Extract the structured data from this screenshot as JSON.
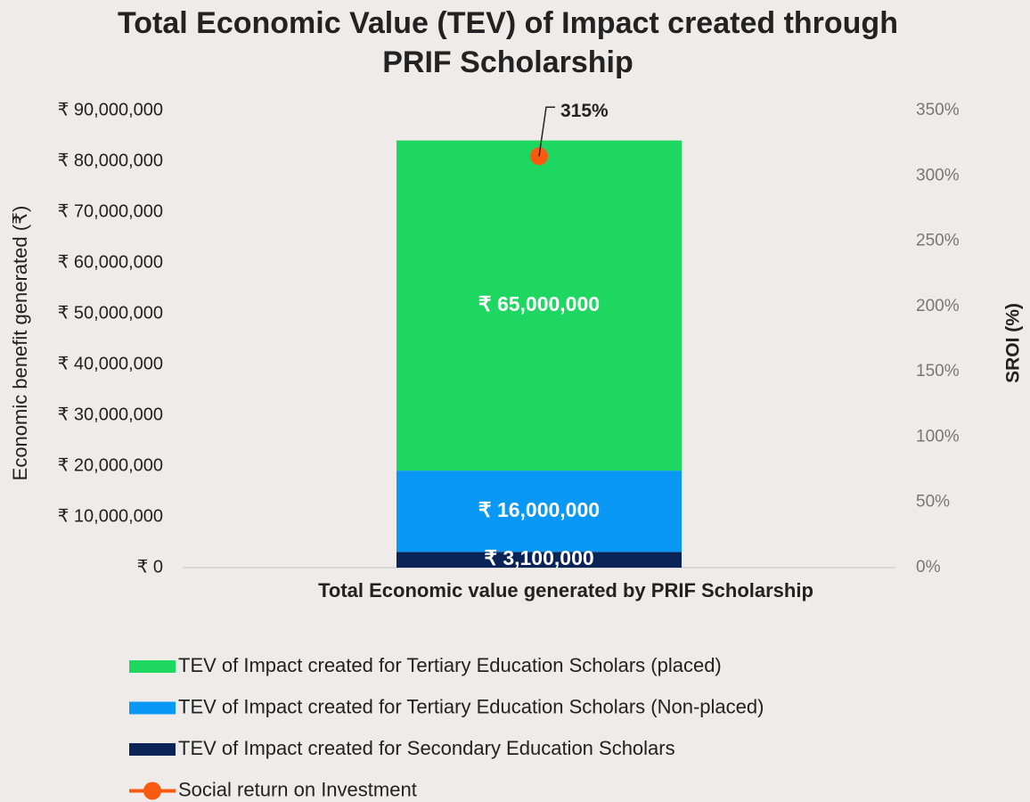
{
  "chart_data": {
    "type": "bar",
    "stacked": true,
    "title": [
      "Total Economic Value (TEV) of Impact created through",
      "PRIF Scholarship"
    ],
    "categories": [
      "Total Economic value generated by PRIF Scholarship"
    ],
    "y_label": "Economic benefit generated (₹)",
    "y2_label": "SROI (%)",
    "ylim": [
      0,
      90000000
    ],
    "yticks": [
      {
        "value": 0,
        "label": "₹ 0"
      },
      {
        "value": 10000000,
        "label": "₹ 10,000,000"
      },
      {
        "value": 20000000,
        "label": "₹ 20,000,000"
      },
      {
        "value": 30000000,
        "label": "₹ 30,000,000"
      },
      {
        "value": 40000000,
        "label": "₹ 40,000,000"
      },
      {
        "value": 50000000,
        "label": "₹ 50,000,000"
      },
      {
        "value": 60000000,
        "label": "₹ 60,000,000"
      },
      {
        "value": 70000000,
        "label": "₹ 70,000,000"
      },
      {
        "value": 80000000,
        "label": "₹ 80,000,000"
      },
      {
        "value": 90000000,
        "label": "₹ 90,000,000"
      }
    ],
    "y2lim": [
      0,
      350
    ],
    "y2ticks": [
      {
        "value": 0,
        "label": "0%"
      },
      {
        "value": 50,
        "label": "50%"
      },
      {
        "value": 100,
        "label": "100%"
      },
      {
        "value": 150,
        "label": "150%"
      },
      {
        "value": 200,
        "label": "200%"
      },
      {
        "value": 250,
        "label": "250%"
      },
      {
        "value": 300,
        "label": "300%"
      },
      {
        "value": 350,
        "label": "350%"
      }
    ],
    "legend": "bottom",
    "series": [
      {
        "name": "TEV of Impact created  for Secondary Education Scholars",
        "color": "#0a2458",
        "values": [
          3100000
        ],
        "value_labels": [
          "₹ 3,100,000"
        ]
      },
      {
        "name": "TEV of Impact created for Tertiary Education Scholars (Non-placed)",
        "color": "#0a98f7",
        "values": [
          16000000
        ],
        "value_labels": [
          "₹ 16,000,000"
        ]
      },
      {
        "name": "TEV of Impact created  for Tertiary Education Scholars (placed)",
        "color": "#1ed760",
        "values": [
          65000000
        ],
        "value_labels": [
          "₹ 65,000,000"
        ]
      },
      {
        "name": "Social return on Investment",
        "color": "#fa5a0f",
        "type": "line",
        "axis": "y2",
        "values": [
          315
        ],
        "value_labels": [
          "315%"
        ]
      }
    ]
  }
}
